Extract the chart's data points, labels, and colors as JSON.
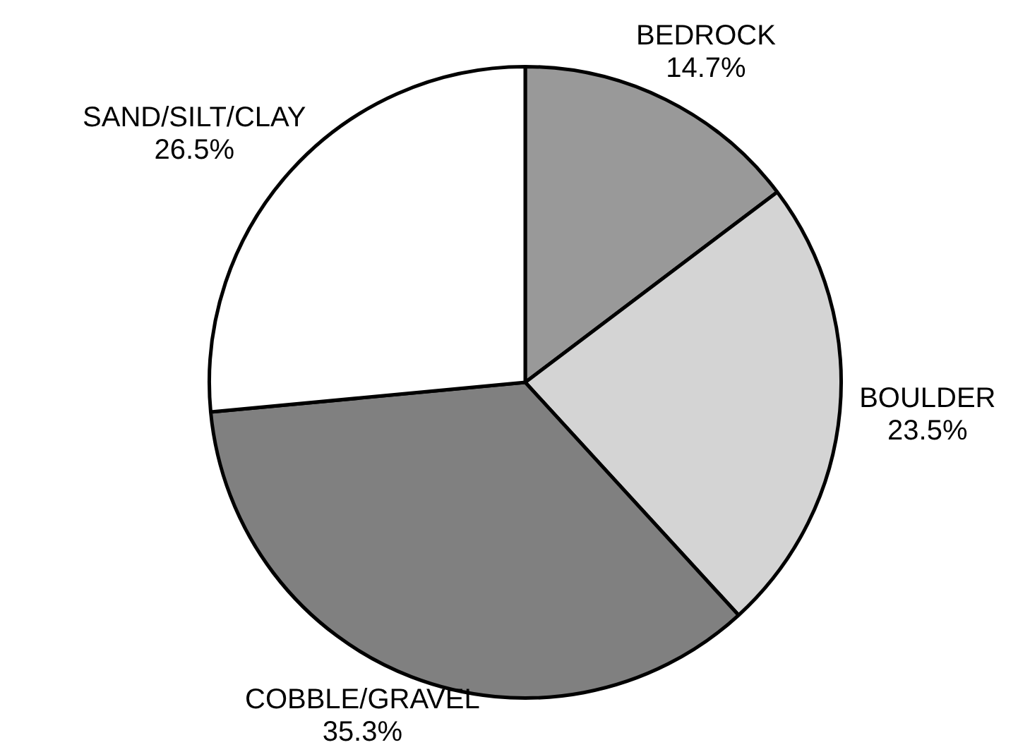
{
  "chart_data": {
    "type": "pie",
    "categories": [
      "BEDROCK",
      "BOULDER",
      "COBBLE/GRAVEL",
      "SAND/SILT/CLAY"
    ],
    "values": [
      14.7,
      23.5,
      35.3,
      26.5
    ],
    "value_labels": [
      "14.7%",
      "23.5%",
      "35.3%",
      "26.5%"
    ],
    "colors": [
      "#999999",
      "#d4d4d4",
      "#808080",
      "#ffffff"
    ],
    "legend": false
  }
}
